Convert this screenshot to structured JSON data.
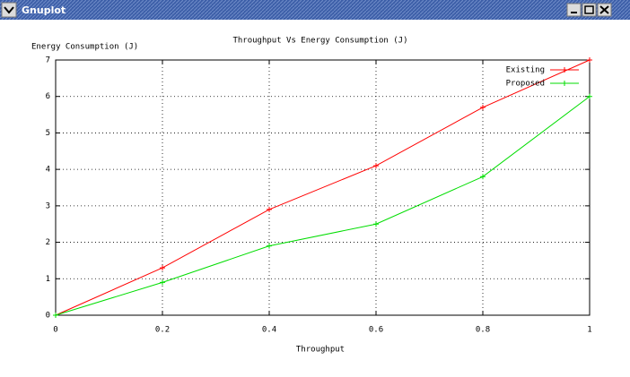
{
  "window": {
    "title": "Gnuplot"
  },
  "chart_data": {
    "type": "line",
    "title": "Throughput Vs Energy Consumption (J)",
    "x_label": "Throughput",
    "y_label": "Energy Consumption (J)",
    "x": [
      0,
      0.2,
      0.4,
      0.6,
      0.8,
      1
    ],
    "series": [
      {
        "name": "Existing",
        "color": "#ff0000",
        "values": [
          0,
          1.3,
          2.9,
          4.1,
          5.7,
          7
        ]
      },
      {
        "name": "Proposed",
        "color": "#00dd00",
        "values": [
          0,
          0.9,
          1.9,
          2.5,
          3.8,
          6
        ]
      }
    ],
    "xlim": [
      0,
      1
    ],
    "xticks": [
      0,
      0.2,
      0.4,
      0.6,
      0.8,
      1
    ],
    "ylim": [
      0,
      7
    ],
    "yticks": [
      0,
      1,
      2,
      3,
      4,
      5,
      6,
      7
    ],
    "grid": true,
    "legend": "top-right"
  }
}
